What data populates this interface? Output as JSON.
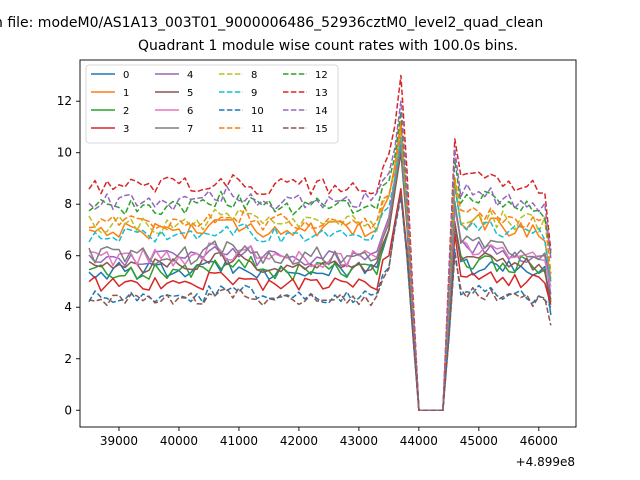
{
  "figure": {
    "suptitle": "n file: modeM0/AS1A13_003T01_9000006486_52936cztM0_level2_quad_clean",
    "title": "Quadrant 1 module wise count rates with 100.0s bins.",
    "offset_text": "+4.899e8"
  },
  "chart_data": {
    "type": "line",
    "title": "Quadrant 1 module wise count rates with 100.0s bins.",
    "xlabel": "",
    "ylabel": "",
    "x_offset": 489900000,
    "xlim": [
      38350,
      46620
    ],
    "ylim": [
      -0.65,
      13.6
    ],
    "x_ticks": [
      39000,
      40000,
      41000,
      42000,
      43000,
      44000,
      45000,
      46000
    ],
    "y_ticks": [
      0,
      2,
      4,
      6,
      8,
      10,
      12
    ],
    "x_start": 38500,
    "x_step": 100,
    "n_points": 78,
    "legend": {
      "position": "upper left",
      "ncol": 4
    },
    "grid": false,
    "series": [
      {
        "name": "0",
        "color": "#1f77b4",
        "dash": "solid",
        "base": 5.4,
        "amp": 0.35,
        "pre": 6.2,
        "peak": 10.2,
        "post_a": 5.6,
        "post_b": 5.4,
        "end": 3.7
      },
      {
        "name": "1",
        "color": "#ff7f0e",
        "dash": "solid",
        "base": 7.0,
        "amp": 0.35,
        "pre": 7.8,
        "peak": 11.2,
        "post_a": 7.4,
        "post_b": 6.9,
        "end": 5.1
      },
      {
        "name": "2",
        "color": "#2ca02c",
        "dash": "solid",
        "base": 5.4,
        "amp": 0.35,
        "pre": 6.3,
        "peak": 10.1,
        "post_a": 5.8,
        "post_b": 5.6,
        "end": 4.2
      },
      {
        "name": "3",
        "color": "#d62728",
        "dash": "solid",
        "base": 4.9,
        "amp": 0.3,
        "pre": 5.8,
        "peak": 8.6,
        "post_a": 5.3,
        "post_b": 4.9,
        "end": 4.1
      },
      {
        "name": "4",
        "color": "#9467bd",
        "dash": "solid",
        "base": 5.9,
        "amp": 0.3,
        "pre": 6.8,
        "peak": 10.6,
        "post_a": 6.4,
        "post_b": 5.8,
        "end": 4.5
      },
      {
        "name": "5",
        "color": "#8c564b",
        "dash": "solid",
        "base": 5.6,
        "amp": 0.3,
        "pre": 6.4,
        "peak": 10.0,
        "post_a": 5.9,
        "post_b": 5.6,
        "end": 4.3
      },
      {
        "name": "6",
        "color": "#e377c2",
        "dash": "solid",
        "base": 5.9,
        "amp": 0.35,
        "pre": 6.7,
        "peak": 10.4,
        "post_a": 6.3,
        "post_b": 5.9,
        "end": 4.8
      },
      {
        "name": "7",
        "color": "#7f7f7f",
        "dash": "solid",
        "base": 6.0,
        "amp": 0.35,
        "pre": 6.6,
        "peak": 10.3,
        "post_a": 6.5,
        "post_b": 6.0,
        "end": 5.0
      },
      {
        "name": "8",
        "color": "#bcbd22",
        "dash": "dashed",
        "base": 7.2,
        "amp": 0.35,
        "pre": 8.0,
        "peak": 11.0,
        "post_a": 7.6,
        "post_b": 7.2,
        "end": 5.3
      },
      {
        "name": "9",
        "color": "#17becf",
        "dash": "dashed",
        "base": 6.8,
        "amp": 0.3,
        "pre": 7.6,
        "peak": 10.6,
        "post_a": 7.2,
        "post_b": 6.8,
        "end": 5.0
      },
      {
        "name": "10",
        "color": "#1f77b4",
        "dash": "dashed",
        "base": 4.4,
        "amp": 0.25,
        "pre": 5.2,
        "peak": 8.3,
        "post_a": 4.7,
        "post_b": 4.3,
        "end": 4.0
      },
      {
        "name": "11",
        "color": "#ff7f0e",
        "dash": "dashed",
        "base": 7.3,
        "amp": 0.35,
        "pre": 8.1,
        "peak": 11.0,
        "post_a": 7.7,
        "post_b": 7.3,
        "end": 5.3
      },
      {
        "name": "12",
        "color": "#2ca02c",
        "dash": "dashed",
        "base": 7.9,
        "amp": 0.35,
        "pre": 8.6,
        "peak": 11.6,
        "post_a": 8.3,
        "post_b": 7.8,
        "end": 6.1
      },
      {
        "name": "13",
        "color": "#d62728",
        "dash": "dashed",
        "base": 8.7,
        "amp": 0.35,
        "pre": 9.3,
        "peak": 13.0,
        "post_a": 9.0,
        "post_b": 8.6,
        "end": 6.2
      },
      {
        "name": "14",
        "color": "#9467bd",
        "dash": "dashed",
        "base": 8.1,
        "amp": 0.35,
        "pre": 8.8,
        "peak": 12.0,
        "post_a": 8.5,
        "post_b": 8.0,
        "end": 5.9
      },
      {
        "name": "15",
        "color": "#8c564b",
        "dash": "dashed",
        "base": 4.3,
        "amp": 0.25,
        "pre": 5.0,
        "peak": 8.4,
        "post_a": 4.6,
        "post_b": 4.2,
        "end": 3.3
      }
    ]
  }
}
